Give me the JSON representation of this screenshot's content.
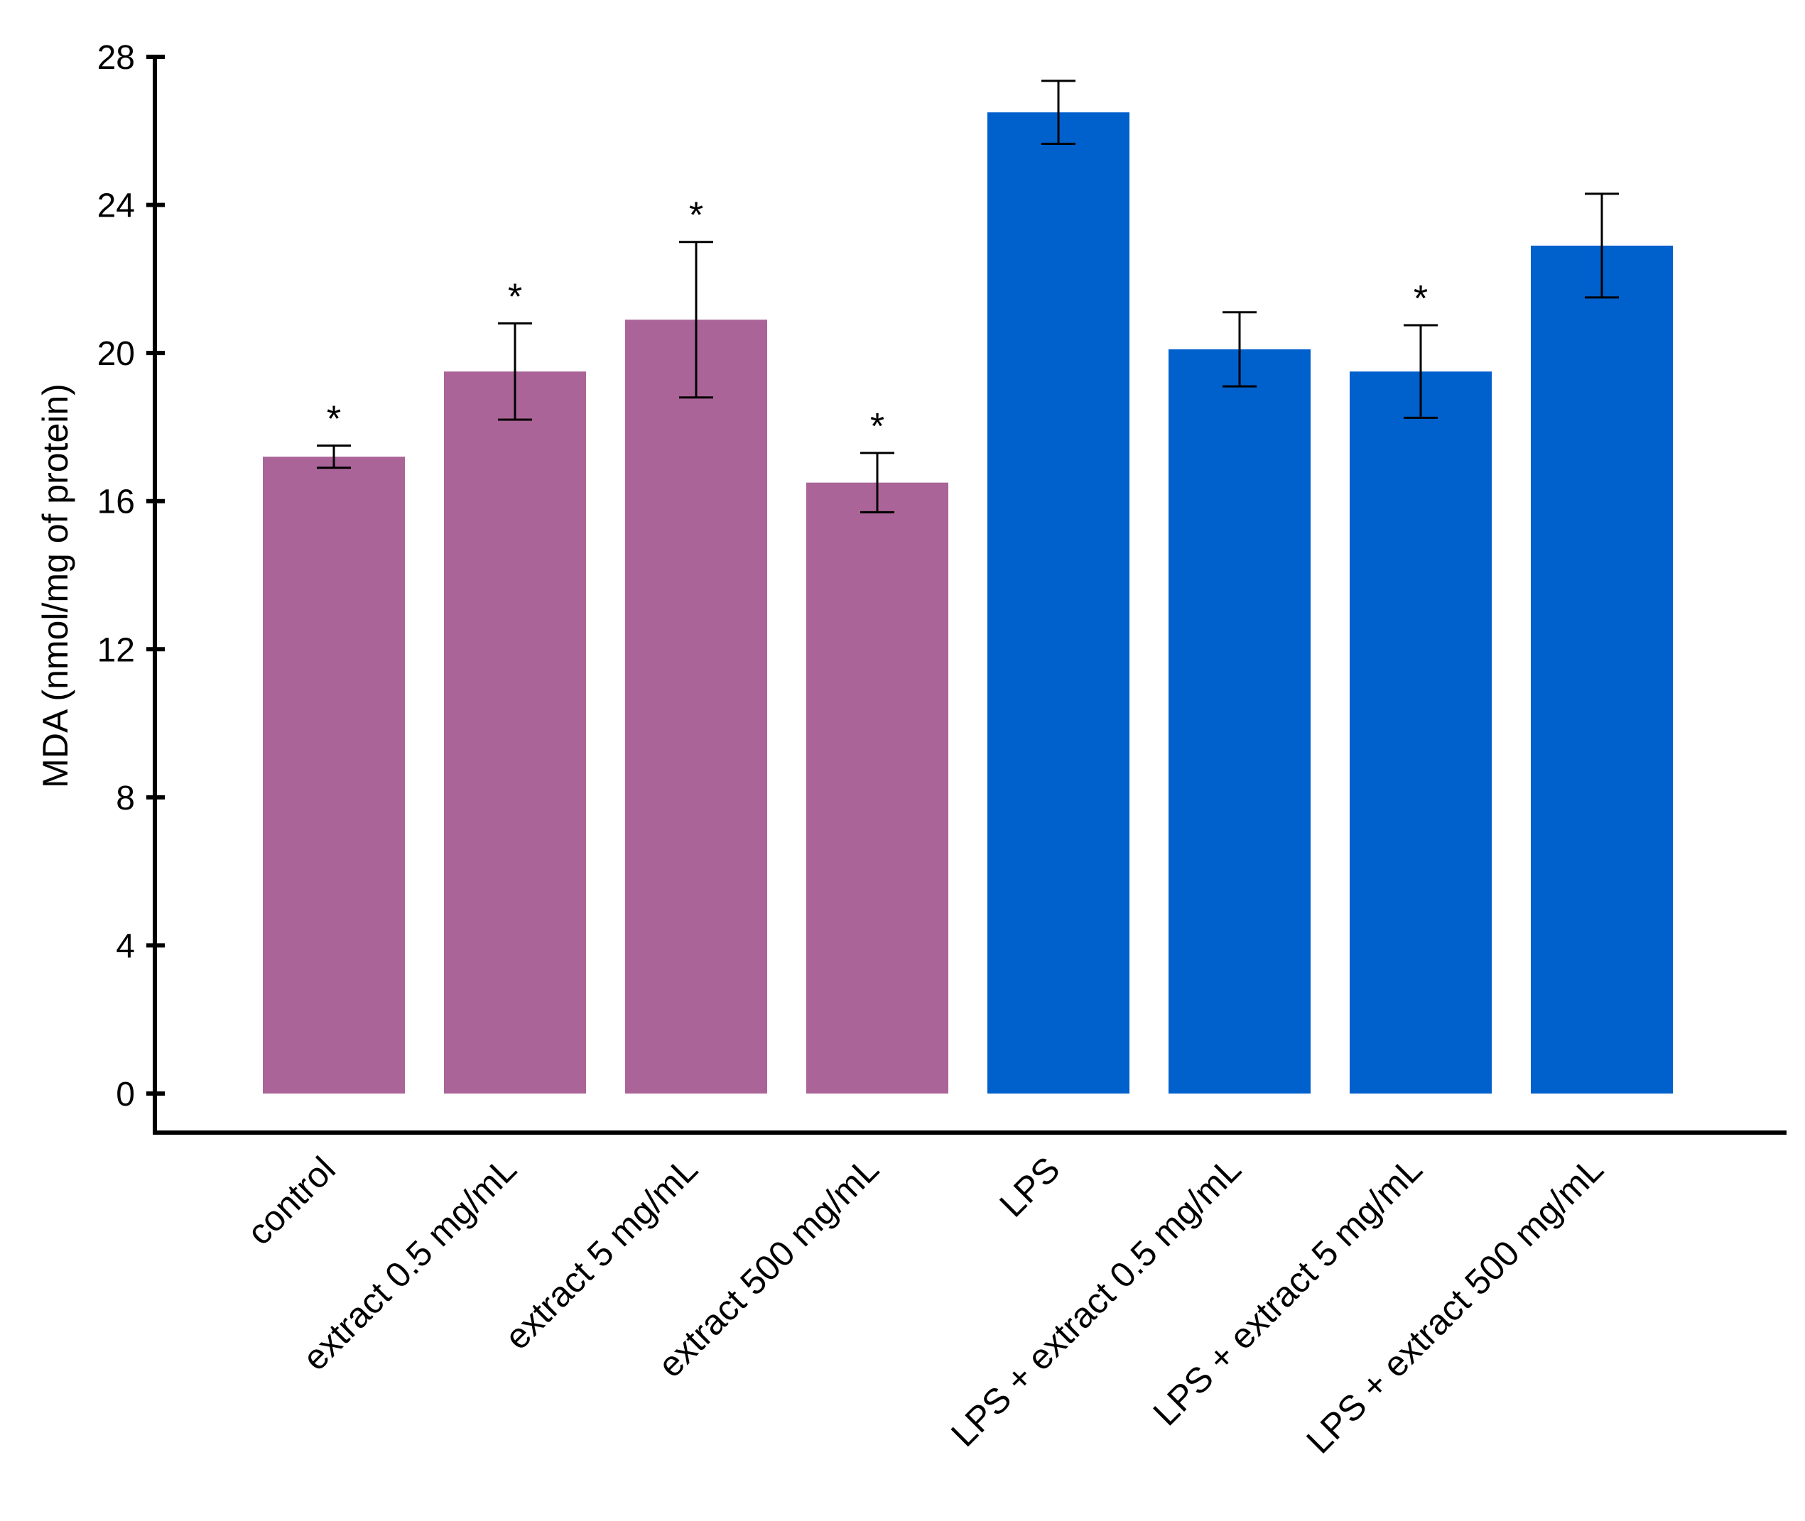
{
  "chart_data": {
    "type": "bar",
    "title": "",
    "xlabel": "",
    "ylabel": "MDA (nmol/mg of protein)",
    "ylim": [
      0,
      28
    ],
    "yticks": [
      0,
      4,
      8,
      12,
      16,
      20,
      24,
      28
    ],
    "grid": false,
    "categories": [
      "control",
      "extract 0.5 mg/mL",
      "extract 5 mg/mL",
      "extract 500 mg/mL",
      "LPS",
      "LPS + extract 0.5 mg/mL",
      "LPS + extract 5 mg/mL",
      "LPS + extract 500 mg/mL"
    ],
    "values": [
      17.2,
      19.5,
      20.9,
      16.5,
      26.5,
      20.1,
      19.5,
      22.9
    ],
    "errors": [
      0.3,
      1.3,
      2.1,
      0.8,
      0.85,
      1.0,
      1.25,
      1.4
    ],
    "significant": [
      "*",
      "*",
      "*",
      "*",
      "",
      "",
      "*",
      ""
    ],
    "colors": [
      "#AB6498",
      "#AB6498",
      "#AB6498",
      "#AB6498",
      "#0060CC",
      "#0060CC",
      "#0060CC",
      "#0060CC"
    ]
  }
}
